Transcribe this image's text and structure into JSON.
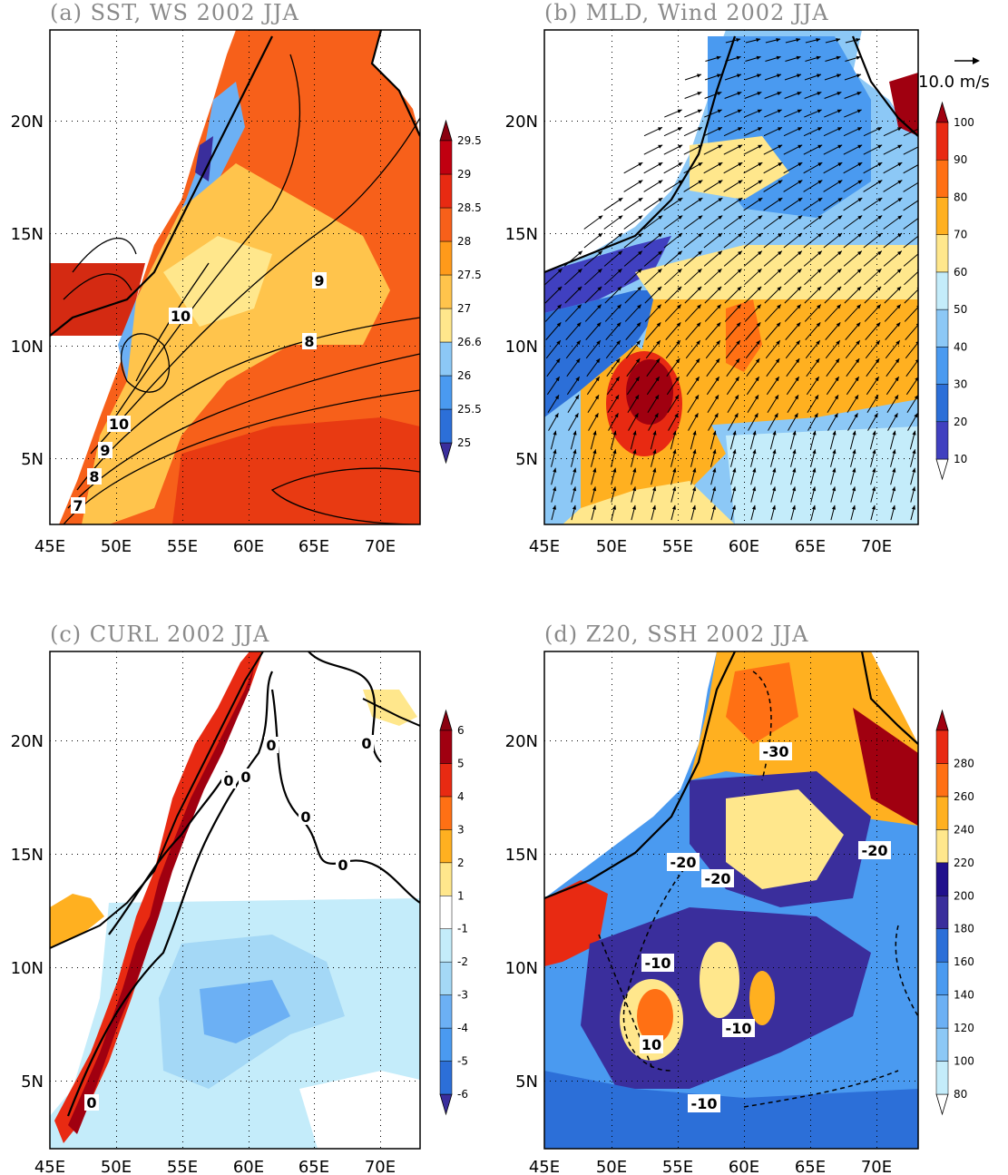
{
  "chart_data": [
    {
      "panel": "a",
      "type": "heatmap",
      "title": "(a) SST, WS 2002 JJA",
      "fill_variable": "SST",
      "contour_variable": "WS",
      "x_ticks": [
        "45E",
        "50E",
        "55E",
        "60E",
        "65E",
        "70E"
      ],
      "y_ticks": [
        "5N",
        "10N",
        "15N",
        "20N"
      ],
      "xlim": [
        45,
        73
      ],
      "ylim": [
        2,
        24
      ],
      "grid": "dotted",
      "colorbar_levels": [
        "25",
        "25.5",
        "26",
        "26.6",
        "27",
        "27.5",
        "28",
        "28.5",
        "29",
        "29.5"
      ],
      "colorbar_colors": [
        "#3a2e9c",
        "#2c6fd8",
        "#4a9af0",
        "#8cc8f6",
        "#ffe78c",
        "#ffc44c",
        "#ff9a1a",
        "#f7601a",
        "#e82a12",
        "#c00010",
        "#8a0010"
      ],
      "contour_labels": [
        "7",
        "8",
        "9",
        "10",
        "8",
        "9",
        "10"
      ]
    },
    {
      "panel": "b",
      "type": "heatmap",
      "title": "(b) MLD, Wind 2002 JJA",
      "fill_variable": "MLD",
      "vector_variable": "Wind",
      "reference_vector": "10.0 m/s",
      "x_ticks": [
        "45E",
        "50E",
        "55E",
        "60E",
        "65E",
        "70E"
      ],
      "y_ticks": [
        "5N",
        "10N",
        "15N",
        "20N"
      ],
      "xlim": [
        45,
        73
      ],
      "ylim": [
        2,
        24
      ],
      "grid": "dotted",
      "colorbar_levels": [
        "10",
        "20",
        "30",
        "40",
        "50",
        "60",
        "70",
        "80",
        "90",
        "100"
      ],
      "colorbar_colors": [
        "#ffffff",
        "#4040c0",
        "#2c6fd8",
        "#4a9af0",
        "#8cc8f6",
        "#c4ecfa",
        "#ffe78c",
        "#ffb020",
        "#ff7014",
        "#e82a12",
        "#a00010"
      ]
    },
    {
      "panel": "c",
      "type": "heatmap",
      "title": "(c) CURL 2002 JJA",
      "fill_variable": "CURL",
      "x_ticks": [
        "45E",
        "50E",
        "55E",
        "60E",
        "65E",
        "70E"
      ],
      "y_ticks": [
        "5N",
        "10N",
        "15N",
        "20N"
      ],
      "xlim": [
        45,
        73
      ],
      "ylim": [
        2,
        24
      ],
      "grid": "dotted",
      "colorbar_levels": [
        "-6",
        "-5",
        "-4",
        "-3",
        "-2",
        "-1",
        "1",
        "2",
        "3",
        "4",
        "5",
        "6"
      ],
      "colorbar_colors": [
        "#3a2e9c",
        "#2c6fd8",
        "#4a9af0",
        "#6cb0f4",
        "#a4d8f6",
        "#c4ecfa",
        "#ffffff",
        "#ffe78c",
        "#ffb020",
        "#ff7014",
        "#e82a12",
        "#a00010",
        "#8a0010"
      ],
      "contour_labels": [
        "0",
        "0",
        "0",
        "0",
        "0",
        "0",
        "0"
      ]
    },
    {
      "panel": "d",
      "type": "heatmap",
      "title": "(d) Z20, SSH 2002 JJA",
      "fill_variable": "Z20",
      "contour_variable": "SSH",
      "x_ticks": [
        "45E",
        "50E",
        "55E",
        "60E",
        "65E",
        "70E"
      ],
      "y_ticks": [
        "5N",
        "10N",
        "15N",
        "20N"
      ],
      "xlim": [
        45,
        73
      ],
      "ylim": [
        2,
        24
      ],
      "grid": "dotted",
      "colorbar_levels": [
        "80",
        "100",
        "120",
        "140",
        "160",
        "180",
        "200",
        "220",
        "240",
        "260",
        "280"
      ],
      "colorbar_colors": [
        "#ffffff",
        "#c4ecfa",
        "#8cc8f6",
        "#6cb0f4",
        "#4a9af0",
        "#2c6fd8",
        "#3a2e9c",
        "#20108c",
        "#ffe78c",
        "#ffb020",
        "#ff7014",
        "#e82a12",
        "#a00010"
      ],
      "contour_labels": [
        "-30",
        "-20",
        "-20",
        "-20",
        "-10",
        "10",
        "-10",
        "-10"
      ]
    }
  ]
}
